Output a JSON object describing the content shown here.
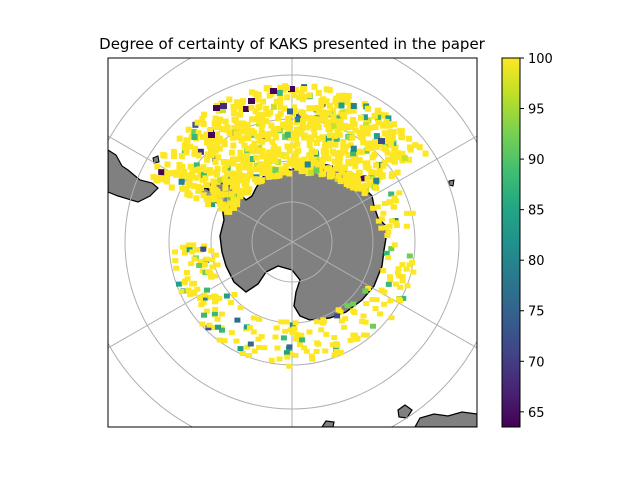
{
  "figure": {
    "title": "Degree of certainty of KAKS presented in the paper"
  },
  "colorbar": {
    "colormap": "viridis",
    "vmin": 63.5,
    "vmax": 100,
    "ticks": [
      "65",
      "70",
      "75",
      "80",
      "85",
      "90",
      "95",
      "100"
    ],
    "tick_values": [
      65,
      70,
      75,
      80,
      85,
      90,
      95,
      100
    ]
  },
  "map": {
    "projection": "south polar stereographic",
    "gridlines": true,
    "land_color": "#808080",
    "coast_color": "#000000",
    "ocean_color": "#ffffff"
  },
  "chart_data": {
    "type": "heatmap",
    "title": "Degree of certainty of KAKS presented in the paper",
    "value_range": [
      63.5,
      100
    ],
    "note_values": "Most gridded cells around the Southern Ocean sea-ice zone are ~100 (yellow); scattered cells range down to ~64 (dark purple).",
    "value_levels": [
      100,
      97,
      92,
      88,
      84,
      80,
      76,
      72,
      68,
      64
    ]
  }
}
